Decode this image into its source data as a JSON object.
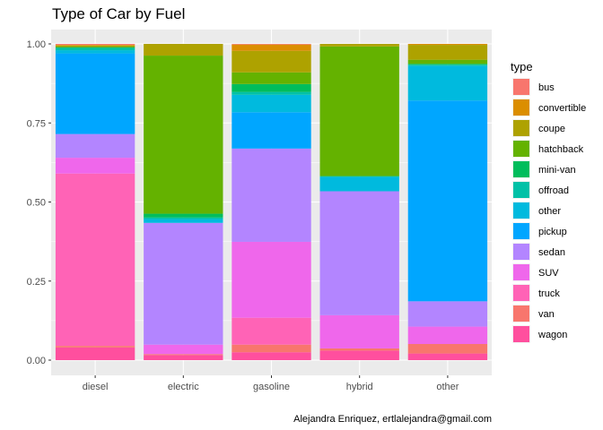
{
  "chart_data": {
    "type": "bar",
    "stacked": true,
    "title": "Type of Car by Fuel",
    "xlabel": "",
    "ylabel": "",
    "caption": "Alejandra Enriquez, ertlalejandra@gmail.com",
    "ylim": [
      0,
      1
    ],
    "yticks": [
      "0.00",
      "0.25",
      "0.50",
      "0.75",
      "1.00"
    ],
    "categories": [
      "diesel",
      "electric",
      "gasoline",
      "hybrid",
      "other"
    ],
    "legend": {
      "title": "type",
      "position": "right"
    },
    "grid": true,
    "series": [
      {
        "name": "bus",
        "color": "#F8766D",
        "values": [
          0.003,
          0.0,
          0.002,
          0.0,
          0.0
        ]
      },
      {
        "name": "convertible",
        "color": "#DB8E00",
        "values": [
          0.002,
          0.0,
          0.02,
          0.0,
          0.003
        ]
      },
      {
        "name": "coupe",
        "color": "#AEA200",
        "values": [
          0.005,
          0.037,
          0.068,
          0.008,
          0.047
        ]
      },
      {
        "name": "hatchback",
        "color": "#64B200",
        "values": [
          0.0,
          0.5,
          0.037,
          0.41,
          0.013
        ]
      },
      {
        "name": "mini-van",
        "color": "#00BD5C",
        "values": [
          0.003,
          0.012,
          0.025,
          0.0,
          0.003
        ]
      },
      {
        "name": "offroad",
        "color": "#00C1A7",
        "values": [
          0.007,
          0.005,
          0.009,
          0.003,
          0.003
        ]
      },
      {
        "name": "other",
        "color": "#00BADE",
        "values": [
          0.01,
          0.012,
          0.055,
          0.045,
          0.11
        ]
      },
      {
        "name": "pickup",
        "color": "#00A6FF",
        "values": [
          0.255,
          0.0,
          0.115,
          0.0,
          0.635
        ]
      },
      {
        "name": "sedan",
        "color": "#B385FF",
        "values": [
          0.075,
          0.385,
          0.295,
          0.392,
          0.08
        ]
      },
      {
        "name": "SUV",
        "color": "#EF67EB",
        "values": [
          0.05,
          0.03,
          0.24,
          0.105,
          0.055
        ]
      },
      {
        "name": "truck",
        "color": "#FF63B6",
        "values": [
          0.545,
          0.0,
          0.085,
          0.0,
          0.0
        ]
      },
      {
        "name": "van",
        "color": "#F8766D",
        "values": [
          0.005,
          0.003,
          0.024,
          0.007,
          0.03
        ]
      },
      {
        "name": "wagon",
        "color": "#FF4F9E",
        "values": [
          0.04,
          0.016,
          0.025,
          0.03,
          0.021
        ]
      }
    ]
  }
}
